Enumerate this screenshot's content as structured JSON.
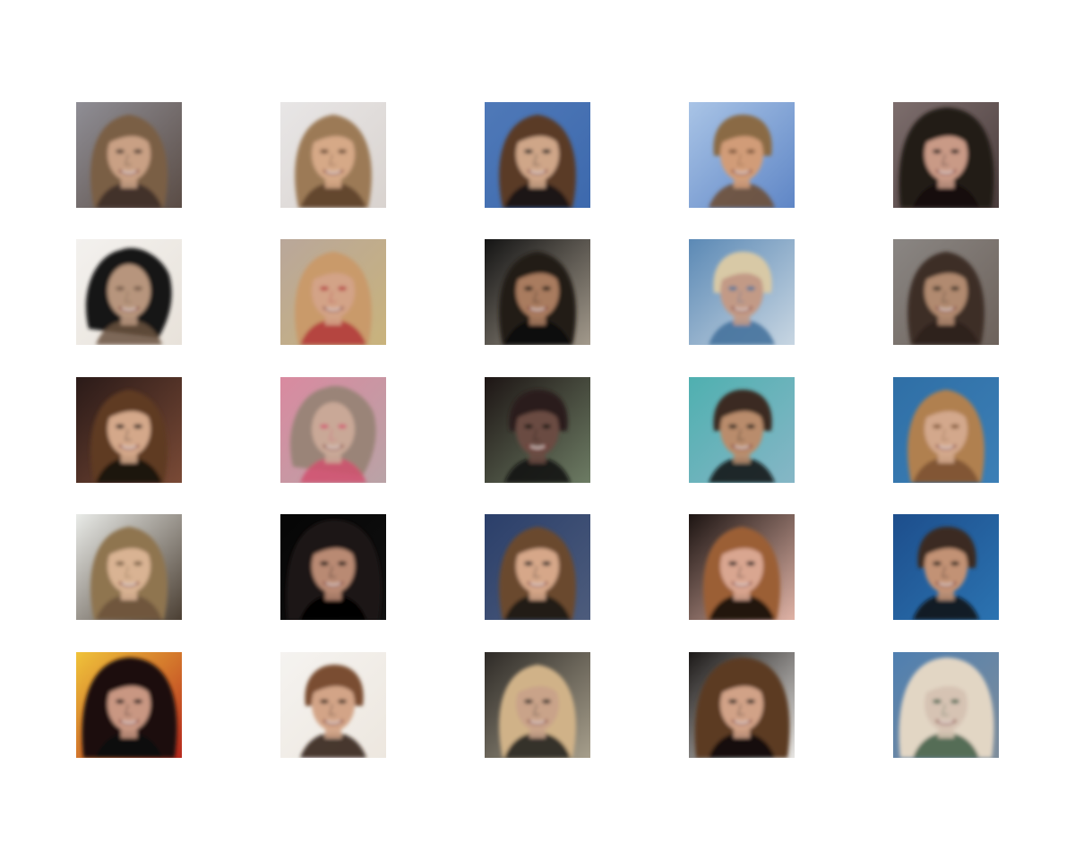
{
  "figure": {
    "rows": 5,
    "cols": 5,
    "tiles": [
      {
        "bg": [
          "#8f8e95",
          "#5a4c45"
        ],
        "hair": "#7a5e44",
        "skin": "#c9a084",
        "shade": "#3a2c24",
        "style": "long"
      },
      {
        "bg": [
          "#e8e6e6",
          "#d9d3cf"
        ],
        "hair": "#9c7a56",
        "skin": "#d6a987",
        "shade": "#5a3d28",
        "style": "long"
      },
      {
        "bg": [
          "#4f79b8",
          "#3d69ad"
        ],
        "hair": "#5a3a26",
        "skin": "#cfa688",
        "shade": "#141414",
        "style": "long"
      },
      {
        "bg": [
          "#a9c4e6",
          "#5f86c6"
        ],
        "hair": "#8a6a44",
        "skin": "#d19c78",
        "shade": "#6d4a30",
        "style": "short"
      },
      {
        "bg": [
          "#7d6e6d",
          "#4a3c3c"
        ],
        "hair": "#241a18",
        "skin": "#c99a86",
        "shade": "#100c0c",
        "style": "big"
      },
      {
        "bg": [
          "#f3f1ee",
          "#e8e2da"
        ],
        "hair": "#181818",
        "skin": "#b7957d",
        "shade": "#6a5240",
        "style": "messy"
      },
      {
        "bg": [
          "#b9a79a",
          "#c9b37c"
        ],
        "hair": "#c99a6b",
        "skin": "#d3a387",
        "shade": "#b2353a",
        "style": "long"
      },
      {
        "bg": [
          "#141414",
          "#a39a8c"
        ],
        "hair": "#241a16",
        "skin": "#a97b5e",
        "shade": "#0b0b0b",
        "style": "long"
      },
      {
        "bg": [
          "#5b89b5",
          "#c8d6e2"
        ],
        "hair": "#d8c9a6",
        "skin": "#c29a86",
        "shade": "#3f6f9a",
        "style": "short"
      },
      {
        "bg": [
          "#8a8683",
          "#6d625b"
        ],
        "hair": "#3c2f28",
        "skin": "#b18a70",
        "shade": "#2a201a",
        "style": "long"
      },
      {
        "bg": [
          "#2a1a18",
          "#7a4a36"
        ],
        "hair": "#5f3a22",
        "skin": "#d4a88a",
        "shade": "#120c0a",
        "style": "long"
      },
      {
        "bg": [
          "#d98aa0",
          "#b9a3a6"
        ],
        "hair": "#9a8478",
        "skin": "#c9a897",
        "shade": "#d1506e",
        "style": "messy"
      },
      {
        "bg": [
          "#1d1514",
          "#6d7c64"
        ],
        "hair": "#2a1e1b",
        "skin": "#6a4c42",
        "shade": "#0e0a0a",
        "style": "short"
      },
      {
        "bg": [
          "#4fb0b0",
          "#86b6c6"
        ],
        "hair": "#3a2a22",
        "skin": "#b98c6c",
        "shade": "#0d0d0d",
        "style": "short"
      },
      {
        "bg": [
          "#2f6fa6",
          "#3c7fb6"
        ],
        "hair": "#b08050",
        "skin": "#d3a88c",
        "shade": "#7a5030",
        "style": "long"
      },
      {
        "bg": [
          "#e9ebe8",
          "#4b3f33"
        ],
        "hair": "#8f7450",
        "skin": "#d9b393",
        "shade": "#6a5238",
        "style": "long"
      },
      {
        "bg": [
          "#050505",
          "#111111"
        ],
        "hair": "#1e1412",
        "skin": "#b98a73",
        "shade": "#000000",
        "style": "big"
      },
      {
        "bg": [
          "#2b3f6a",
          "#4d5c7c"
        ],
        "hair": "#6b4a2e",
        "skin": "#d6a789",
        "shade": "#141414",
        "style": "long"
      },
      {
        "bg": [
          "#1c1412",
          "#e0b3a6"
        ],
        "hair": "#9b5f34",
        "skin": "#d9a690",
        "shade": "#0f0c0c",
        "style": "long"
      },
      {
        "bg": [
          "#1d4e8c",
          "#2b73b1"
        ],
        "hair": "#3a2a22",
        "skin": "#c29275",
        "shade": "#0f0f0f",
        "style": "short"
      },
      {
        "bg": [
          "#f0c33a",
          "#b6281d"
        ],
        "hair": "#1a1010",
        "skin": "#c99782",
        "shade": "#0a0606",
        "style": "big"
      },
      {
        "bg": [
          "#f5f3f0",
          "#ede7df"
        ],
        "hair": "#7a4e33",
        "skin": "#d3a487",
        "shade": "#2a1a12",
        "style": "short"
      },
      {
        "bg": [
          "#2e2b27",
          "#a79f8c"
        ],
        "hair": "#d0b288",
        "skin": "#c9a389",
        "shade": "#1a1a1a",
        "style": "long"
      },
      {
        "bg": [
          "#1c1918",
          "#e7e5e2"
        ],
        "hair": "#5b3a24",
        "skin": "#d1a287",
        "shade": "#0b0b0b",
        "style": "big"
      },
      {
        "bg": [
          "#4f7fb0",
          "#7e8d9b"
        ],
        "hair": "#e2d6c4",
        "skin": "#d6c3b3",
        "shade": "#3b5a44",
        "style": "big"
      }
    ]
  }
}
